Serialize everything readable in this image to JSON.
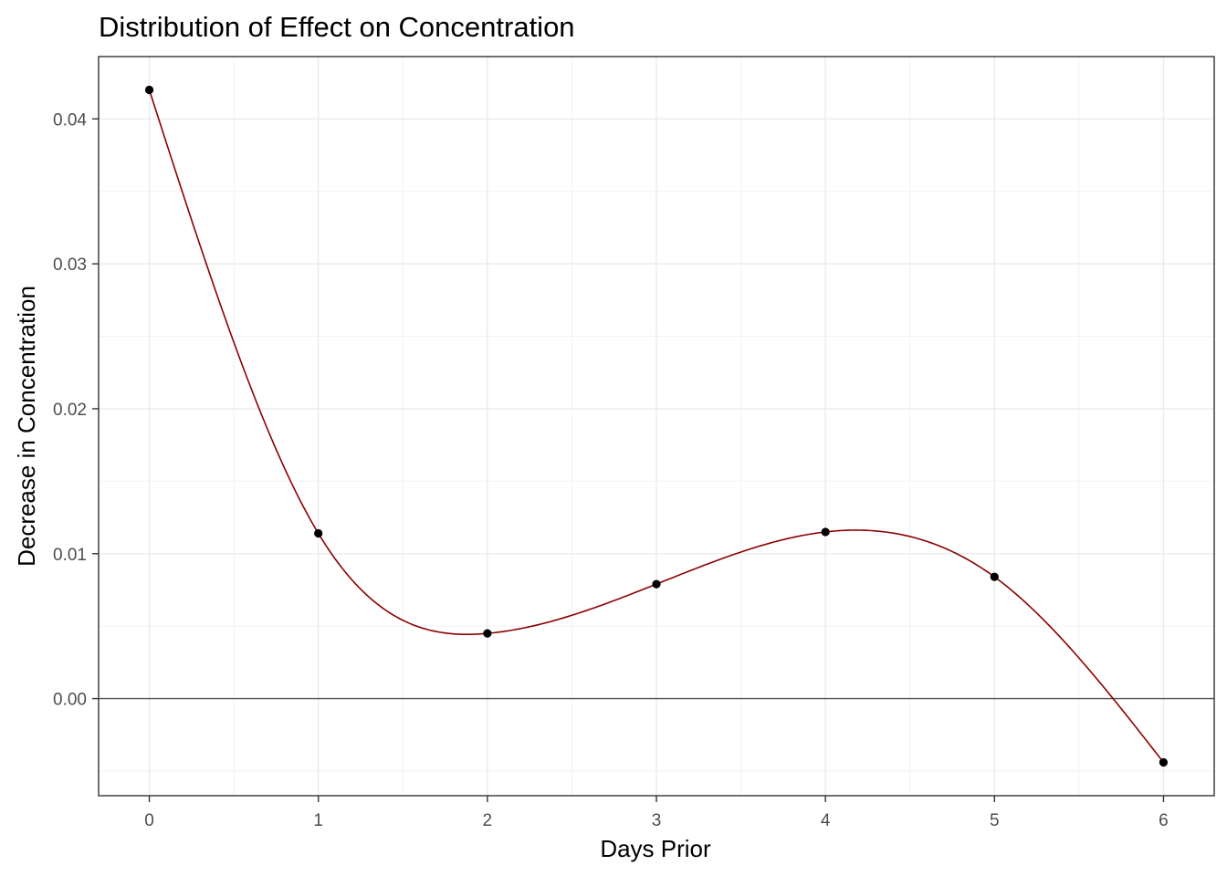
{
  "chart_data": {
    "type": "line",
    "title": "Distribution of Effect on Concentration",
    "xlabel": "Days Prior",
    "ylabel": "Decrease in Concentration",
    "xlim": [
      -0.3,
      6.3
    ],
    "ylim": [
      -0.0067,
      0.0443
    ],
    "x_ticks": [
      0,
      1,
      2,
      3,
      4,
      5,
      6
    ],
    "x_tick_labels": [
      "0",
      "1",
      "2",
      "3",
      "4",
      "5",
      "6"
    ],
    "y_ticks": [
      0.0,
      0.01,
      0.02,
      0.03,
      0.04
    ],
    "y_tick_labels": [
      "0.00",
      "0.01",
      "0.02",
      "0.03",
      "0.04"
    ],
    "grid": true,
    "reference_line_y": 0,
    "series": [
      {
        "line_color": "#8b0000",
        "point_color": "#000000",
        "x": [
          0,
          1,
          2,
          3,
          4,
          5,
          6
        ],
        "y": [
          0.042,
          0.0114,
          0.0045,
          0.0079,
          0.0115,
          0.0084,
          -0.0044
        ]
      }
    ]
  }
}
